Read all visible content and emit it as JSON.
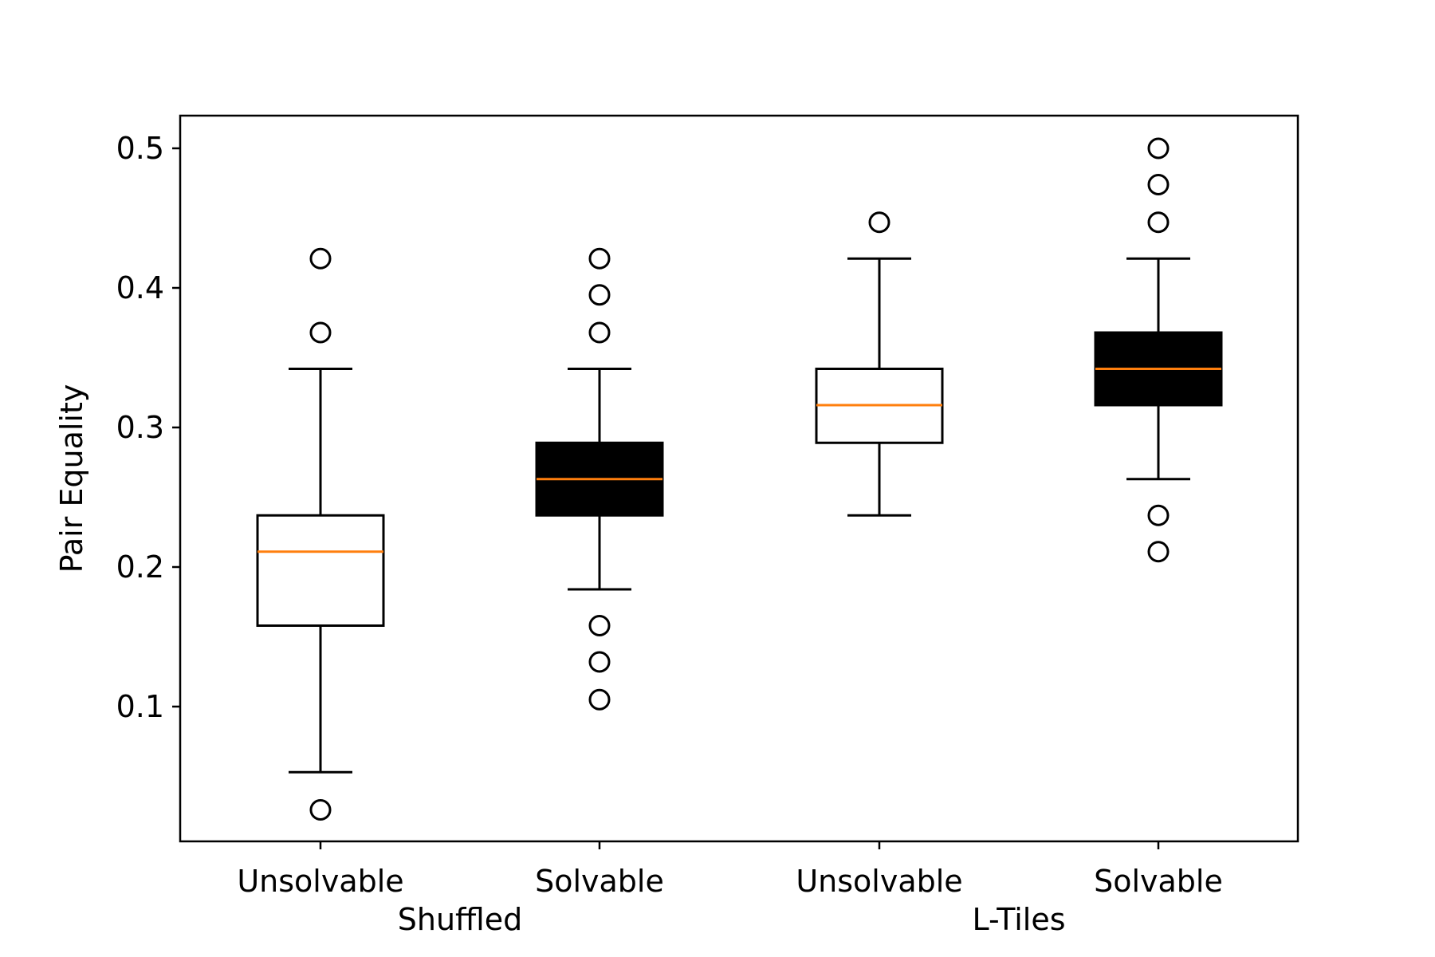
{
  "chart_data": {
    "type": "box",
    "ylabel": "Pair Equality",
    "ylim": [
      0.0,
      0.52
    ],
    "yticks": [
      0.1,
      0.2,
      0.3,
      0.4,
      0.5
    ],
    "ytick_labels": [
      "0.1",
      "0.2",
      "0.3",
      "0.4",
      "0.5"
    ],
    "grid": false,
    "legend": "none",
    "groups": [
      {
        "label": "Shuffled",
        "categories": [
          0,
          1
        ]
      },
      {
        "label": "L-Tiles",
        "categories": [
          2,
          3
        ]
      }
    ],
    "boxes": [
      {
        "label": "Unsolvable",
        "fill": "#ffffff",
        "whisker_low": 0.053,
        "q1": 0.158,
        "median": 0.211,
        "q3": 0.237,
        "whisker_high": 0.342,
        "outliers": [
          0.026,
          0.368,
          0.421
        ]
      },
      {
        "label": "Solvable",
        "fill": "#000000",
        "whisker_low": 0.184,
        "q1": 0.237,
        "median": 0.263,
        "q3": 0.289,
        "whisker_high": 0.342,
        "outliers": [
          0.105,
          0.132,
          0.158,
          0.368,
          0.395,
          0.421
        ]
      },
      {
        "label": "Unsolvable",
        "fill": "#ffffff",
        "whisker_low": 0.237,
        "q1": 0.289,
        "median": 0.316,
        "q3": 0.342,
        "whisker_high": 0.421,
        "outliers": [
          0.447
        ]
      },
      {
        "label": "Solvable",
        "fill": "#000000",
        "whisker_low": 0.263,
        "q1": 0.316,
        "median": 0.342,
        "q3": 0.368,
        "whisker_high": 0.421,
        "outliers": [
          0.211,
          0.237,
          0.447,
          0.474,
          0.5
        ]
      }
    ],
    "colors": {
      "median": "#ff7f0e",
      "box_edge": "#000000",
      "whisker": "#000000",
      "outlier_edge": "#000000"
    }
  }
}
